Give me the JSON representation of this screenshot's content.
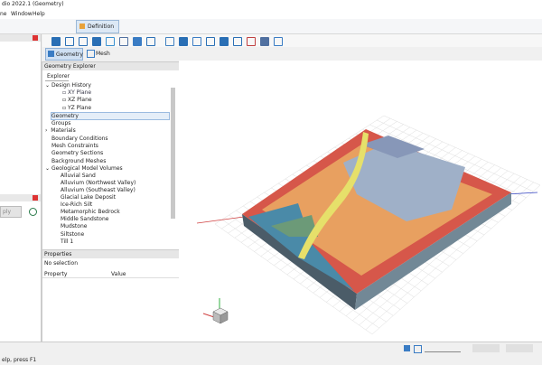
{
  "window": {
    "title": "dio 2022.1 (Geometry)",
    "menu": [
      "ne",
      "Window",
      "Help"
    ]
  },
  "ribbon": {
    "tab": "Definition"
  },
  "left_panel": {
    "button": "ply"
  },
  "view_tabs": [
    "Geometry",
    "Mesh"
  ],
  "explorer": {
    "title": "Geometry Explorer",
    "tab": "Explorer",
    "tree": [
      "Design History",
      "XY Plane",
      "XZ Plane",
      "YZ Plane",
      "Geometry",
      "Groups",
      "Materials",
      "Boundary Conditions",
      "Mesh Constraints",
      "Geometry Sections",
      "Background Meshes",
      "Geological Model Volumes",
      "Alluvial Sand",
      "Alluvium (Northwest Valley)",
      "Alluvium (Southeast Valley)",
      "Glacial Lake Deposit",
      "Ice-Rich Silt",
      "Metamorphic Bedrock",
      "Middle Sandstone",
      "Mudstone",
      "Siltstone",
      "Till 1"
    ]
  },
  "properties": {
    "title": "Properties",
    "selection": "No selection",
    "columns": [
      "Property",
      "Value"
    ]
  },
  "status": "elp, press F1"
}
